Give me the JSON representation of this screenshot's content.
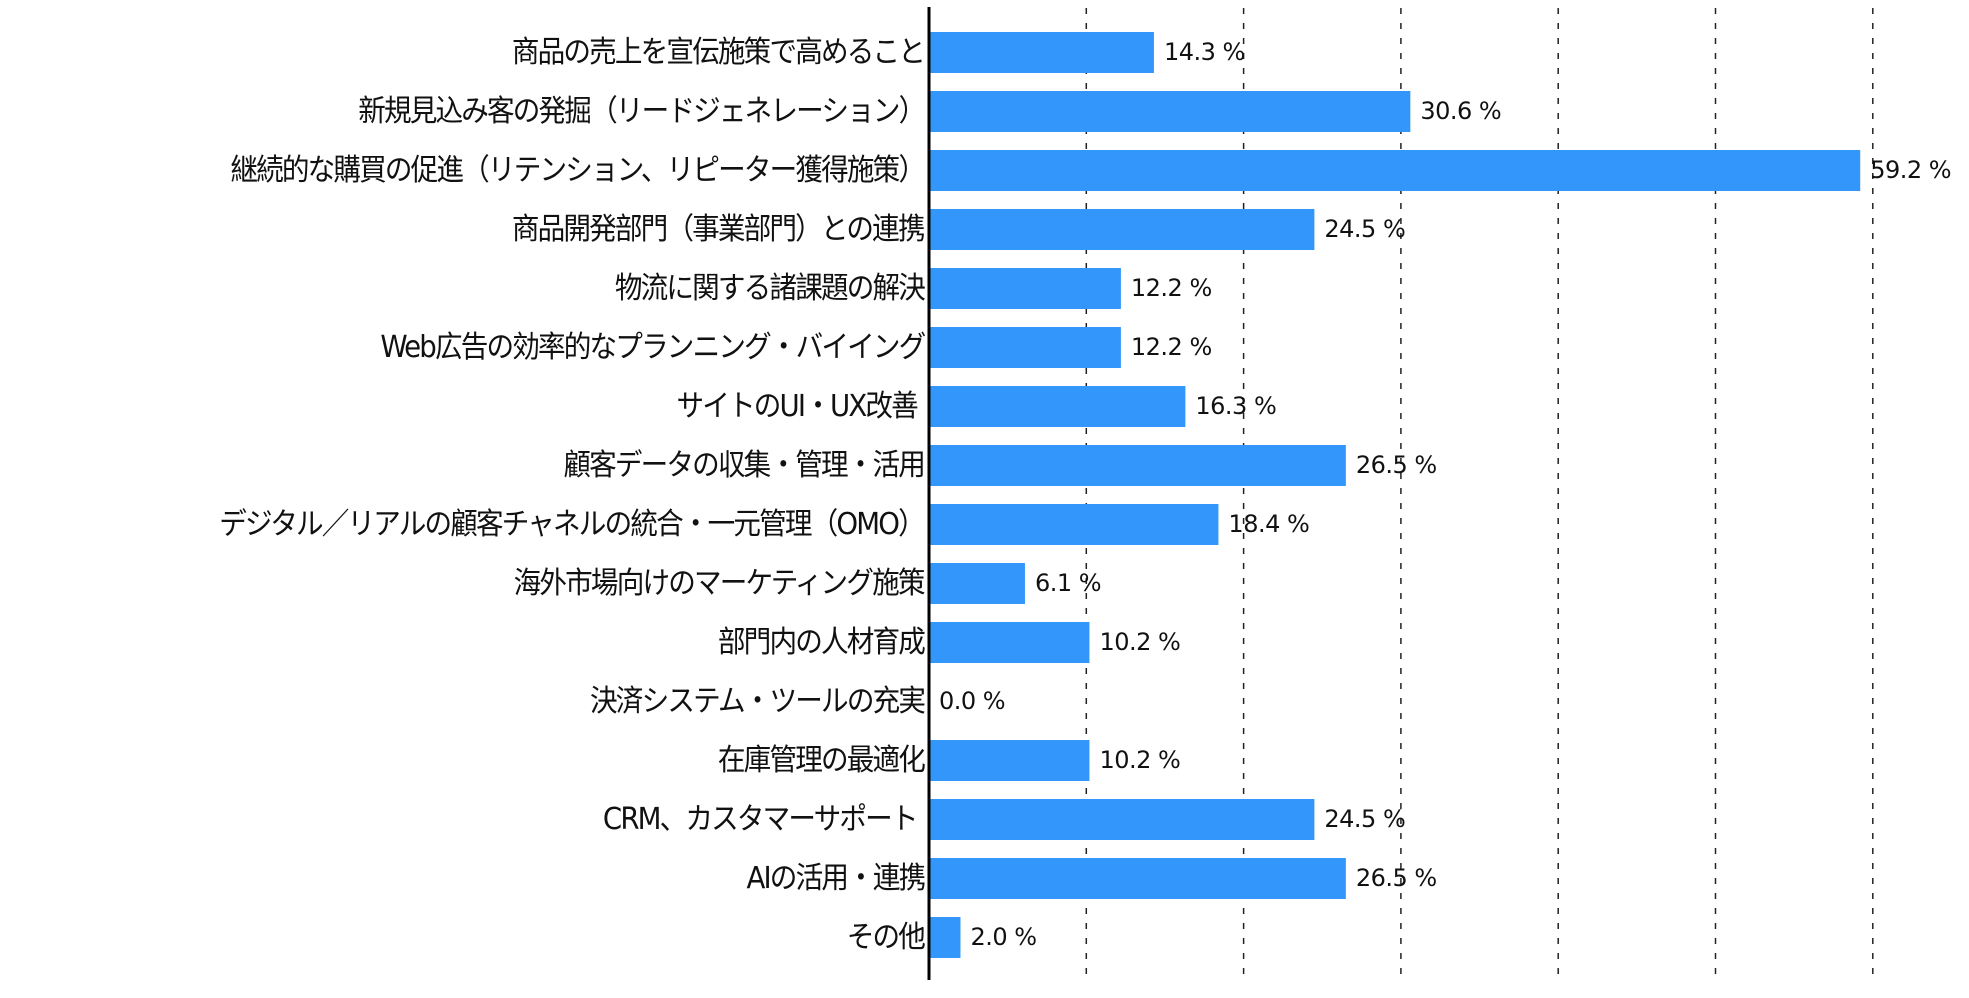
{
  "chart_data": {
    "type": "bar",
    "orientation": "horizontal",
    "title": "",
    "xlabel": "",
    "ylabel": "",
    "xlim": [
      0,
      60
    ],
    "grid": {
      "axis": "x",
      "style": "dashed",
      "step": 10
    },
    "value_suffix": " %",
    "bar_color": "#3296FA",
    "categories": [
      "商品の売上を宣伝施策で高めること",
      "新規見込み客の発掘（リードジェネレーション）",
      "継続的な購買の促進（リテンション、リピーター獲得施策）",
      "商品開発部門（事業部門）との連携",
      "物流に関する諸課題の解決",
      "Web広告の効率的なプランニング・バイイング",
      "サイトのUI・UX改善 ",
      "顧客データの収集・管理・活用",
      "デジタル／リアルの顧客チャネルの統合・一元管理（OMO）",
      "海外市場向けのマーケティング施策",
      "部門内の人材育成",
      "決済システム・ツールの充実",
      "在庫管理の最適化",
      "CRM、カスタマーサポート ",
      "AIの活用・連携",
      "その他"
    ],
    "values": [
      14.3,
      30.6,
      59.2,
      24.5,
      12.2,
      12.2,
      16.3,
      26.5,
      18.4,
      6.1,
      10.2,
      0.0,
      10.2,
      24.5,
      26.5,
      2.0
    ],
    "data_labels": [
      "14.3 %",
      "30.6 %",
      "59.2 %",
      "24.5 %",
      "12.2 %",
      "12.2 %",
      "16.3 %",
      "26.5 %",
      "18.4 %",
      "6.1 %",
      "10.2 %",
      "0.0 %",
      "10.2 %",
      "24.5 %",
      "26.5 %",
      "2.0 %"
    ]
  }
}
